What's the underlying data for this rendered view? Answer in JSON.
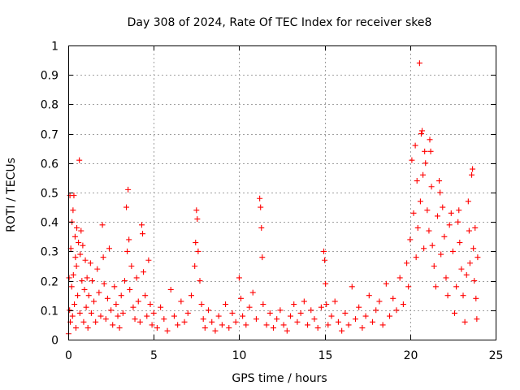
{
  "chart_data": {
    "type": "scatter",
    "title": "Day 308 of 2024, Rate Of TEC Index for receiver ske8",
    "xlabel": "GPS time / hours",
    "ylabel": "ROTI / TECUs",
    "xlim": [
      0,
      25
    ],
    "ylim": [
      0,
      1
    ],
    "x_ticks": [
      0,
      5,
      10,
      15,
      20,
      25
    ],
    "x_tick_labels": [
      "0",
      "5",
      "10",
      "15",
      "20",
      "25"
    ],
    "y_ticks": [
      0,
      0.1,
      0.2,
      0.3,
      0.4,
      0.5,
      0.6,
      0.7,
      0.8,
      0.9,
      1
    ],
    "y_tick_labels": [
      "0",
      "0.1",
      "0.2",
      "0.3",
      "0.4",
      "0.5",
      "0.6",
      "0.7",
      "0.8",
      "0.9",
      "1"
    ],
    "grid": true,
    "marker": "+",
    "series": [
      {
        "color": "#ff0000",
        "points": [
          [
            0.02,
            0.02
          ],
          [
            0.05,
            0.21
          ],
          [
            0.08,
            0.1
          ],
          [
            0.1,
            0.49
          ],
          [
            0.12,
            0.06
          ],
          [
            0.15,
            0.31
          ],
          [
            0.2,
            0.18
          ],
          [
            0.22,
            0.4
          ],
          [
            0.25,
            0.08
          ],
          [
            0.28,
            0.44
          ],
          [
            0.3,
            0.22
          ],
          [
            0.33,
            0.49
          ],
          [
            0.36,
            0.12
          ],
          [
            0.4,
            0.35
          ],
          [
            0.42,
            0.28
          ],
          [
            0.45,
            0.04
          ],
          [
            0.48,
            0.25
          ],
          [
            0.5,
            0.38
          ],
          [
            0.55,
            0.15
          ],
          [
            0.6,
            0.33
          ],
          [
            0.65,
            0.61
          ],
          [
            0.68,
            0.09
          ],
          [
            0.7,
            0.29
          ],
          [
            0.75,
            0.37
          ],
          [
            0.8,
            0.2
          ],
          [
            0.85,
            0.32
          ],
          [
            0.9,
            0.06
          ],
          [
            0.95,
            0.17
          ],
          [
            1.0,
            0.27
          ],
          [
            1.05,
            0.11
          ],
          [
            1.1,
            0.21
          ],
          [
            1.15,
            0.04
          ],
          [
            1.2,
            0.15
          ],
          [
            1.3,
            0.26
          ],
          [
            1.35,
            0.09
          ],
          [
            1.4,
            0.2
          ],
          [
            1.5,
            0.13
          ],
          [
            1.6,
            0.06
          ],
          [
            1.7,
            0.24
          ],
          [
            1.8,
            0.16
          ],
          [
            1.9,
            0.08
          ],
          [
            2.0,
            0.39
          ],
          [
            2.05,
            0.28
          ],
          [
            2.1,
            0.19
          ],
          [
            2.2,
            0.07
          ],
          [
            2.3,
            0.14
          ],
          [
            2.4,
            0.31
          ],
          [
            2.5,
            0.1
          ],
          [
            2.6,
            0.05
          ],
          [
            2.7,
            0.18
          ],
          [
            2.8,
            0.12
          ],
          [
            2.9,
            0.08
          ],
          [
            3.0,
            0.04
          ],
          [
            3.1,
            0.15
          ],
          [
            3.2,
            0.09
          ],
          [
            3.3,
            0.2
          ],
          [
            3.4,
            0.45
          ],
          [
            3.45,
            0.3
          ],
          [
            3.5,
            0.51
          ],
          [
            3.55,
            0.34
          ],
          [
            3.6,
            0.17
          ],
          [
            3.7,
            0.25
          ],
          [
            3.8,
            0.11
          ],
          [
            3.9,
            0.07
          ],
          [
            4.0,
            0.21
          ],
          [
            4.1,
            0.13
          ],
          [
            4.2,
            0.06
          ],
          [
            4.3,
            0.39
          ],
          [
            4.35,
            0.36
          ],
          [
            4.4,
            0.23
          ],
          [
            4.5,
            0.15
          ],
          [
            4.6,
            0.08
          ],
          [
            4.7,
            0.27
          ],
          [
            4.8,
            0.12
          ],
          [
            4.9,
            0.05
          ],
          [
            5.0,
            0.09
          ],
          [
            5.2,
            0.04
          ],
          [
            5.4,
            0.11
          ],
          [
            5.6,
            0.07
          ],
          [
            5.8,
            0.03
          ],
          [
            6.0,
            0.17
          ],
          [
            6.2,
            0.08
          ],
          [
            6.4,
            0.05
          ],
          [
            6.6,
            0.13
          ],
          [
            6.8,
            0.06
          ],
          [
            7.0,
            0.09
          ],
          [
            7.2,
            0.15
          ],
          [
            7.4,
            0.25
          ],
          [
            7.45,
            0.33
          ],
          [
            7.5,
            0.44
          ],
          [
            7.55,
            0.41
          ],
          [
            7.6,
            0.3
          ],
          [
            7.7,
            0.2
          ],
          [
            7.8,
            0.12
          ],
          [
            7.9,
            0.07
          ],
          [
            8.0,
            0.04
          ],
          [
            8.2,
            0.1
          ],
          [
            8.4,
            0.06
          ],
          [
            8.6,
            0.03
          ],
          [
            8.8,
            0.08
          ],
          [
            9.0,
            0.05
          ],
          [
            9.2,
            0.12
          ],
          [
            9.4,
            0.04
          ],
          [
            9.6,
            0.09
          ],
          [
            9.8,
            0.06
          ],
          [
            10.0,
            0.21
          ],
          [
            10.1,
            0.14
          ],
          [
            10.2,
            0.08
          ],
          [
            10.4,
            0.05
          ],
          [
            10.6,
            0.11
          ],
          [
            10.8,
            0.16
          ],
          [
            11.0,
            0.07
          ],
          [
            11.2,
            0.48
          ],
          [
            11.25,
            0.45
          ],
          [
            11.3,
            0.38
          ],
          [
            11.35,
            0.28
          ],
          [
            11.4,
            0.12
          ],
          [
            11.6,
            0.05
          ],
          [
            11.8,
            0.09
          ],
          [
            12.0,
            0.04
          ],
          [
            12.2,
            0.07
          ],
          [
            12.4,
            0.1
          ],
          [
            12.6,
            0.05
          ],
          [
            12.8,
            0.03
          ],
          [
            13.0,
            0.08
          ],
          [
            13.2,
            0.12
          ],
          [
            13.4,
            0.06
          ],
          [
            13.6,
            0.09
          ],
          [
            13.8,
            0.13
          ],
          [
            14.0,
            0.05
          ],
          [
            14.2,
            0.1
          ],
          [
            14.4,
            0.07
          ],
          [
            14.6,
            0.04
          ],
          [
            14.8,
            0.11
          ],
          [
            14.95,
            0.3
          ],
          [
            15.0,
            0.27
          ],
          [
            15.05,
            0.19
          ],
          [
            15.1,
            0.12
          ],
          [
            15.2,
            0.05
          ],
          [
            15.4,
            0.08
          ],
          [
            15.6,
            0.13
          ],
          [
            15.8,
            0.06
          ],
          [
            16.0,
            0.03
          ],
          [
            16.2,
            0.09
          ],
          [
            16.4,
            0.05
          ],
          [
            16.6,
            0.18
          ],
          [
            16.8,
            0.07
          ],
          [
            17.0,
            0.11
          ],
          [
            17.2,
            0.04
          ],
          [
            17.4,
            0.08
          ],
          [
            17.6,
            0.15
          ],
          [
            17.8,
            0.06
          ],
          [
            18.0,
            0.1
          ],
          [
            18.2,
            0.13
          ],
          [
            18.4,
            0.05
          ],
          [
            18.6,
            0.19
          ],
          [
            18.8,
            0.08
          ],
          [
            19.0,
            0.14
          ],
          [
            19.2,
            0.1
          ],
          [
            19.4,
            0.21
          ],
          [
            19.6,
            0.12
          ],
          [
            19.8,
            0.26
          ],
          [
            19.9,
            0.18
          ],
          [
            20.0,
            0.34
          ],
          [
            20.1,
            0.61
          ],
          [
            20.2,
            0.43
          ],
          [
            20.3,
            0.66
          ],
          [
            20.35,
            0.28
          ],
          [
            20.4,
            0.54
          ],
          [
            20.45,
            0.38
          ],
          [
            20.55,
            0.94
          ],
          [
            20.6,
            0.47
          ],
          [
            20.65,
            0.7
          ],
          [
            20.7,
            0.71
          ],
          [
            20.75,
            0.56
          ],
          [
            20.8,
            0.31
          ],
          [
            20.85,
            0.64
          ],
          [
            20.9,
            0.6
          ],
          [
            21.0,
            0.44
          ],
          [
            21.1,
            0.37
          ],
          [
            21.15,
            0.68
          ],
          [
            21.2,
            0.64
          ],
          [
            21.25,
            0.52
          ],
          [
            21.3,
            0.32
          ],
          [
            21.4,
            0.25
          ],
          [
            21.5,
            0.18
          ],
          [
            21.6,
            0.42
          ],
          [
            21.7,
            0.54
          ],
          [
            21.75,
            0.5
          ],
          [
            21.8,
            0.29
          ],
          [
            21.9,
            0.45
          ],
          [
            22.0,
            0.35
          ],
          [
            22.1,
            0.21
          ],
          [
            22.2,
            0.15
          ],
          [
            22.3,
            0.39
          ],
          [
            22.4,
            0.43
          ],
          [
            22.5,
            0.3
          ],
          [
            22.6,
            0.09
          ],
          [
            22.7,
            0.18
          ],
          [
            22.8,
            0.4
          ],
          [
            22.85,
            0.44
          ],
          [
            22.9,
            0.33
          ],
          [
            23.0,
            0.24
          ],
          [
            23.1,
            0.15
          ],
          [
            23.2,
            0.06
          ],
          [
            23.3,
            0.22
          ],
          [
            23.4,
            0.47
          ],
          [
            23.45,
            0.37
          ],
          [
            23.5,
            0.26
          ],
          [
            23.6,
            0.56
          ],
          [
            23.65,
            0.58
          ],
          [
            23.7,
            0.31
          ],
          [
            23.75,
            0.2
          ],
          [
            23.8,
            0.38
          ],
          [
            23.85,
            0.14
          ],
          [
            23.9,
            0.07
          ],
          [
            23.95,
            0.28
          ]
        ]
      }
    ]
  }
}
